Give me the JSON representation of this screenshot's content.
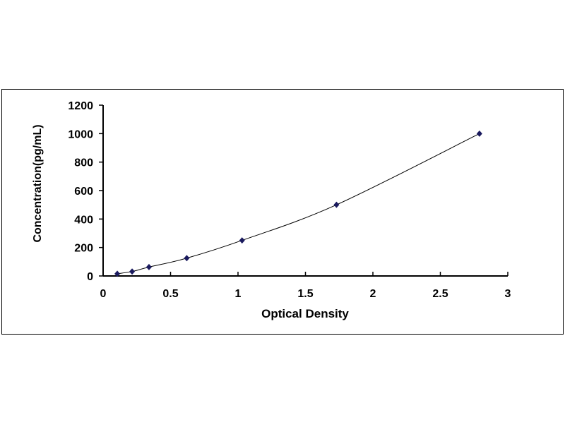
{
  "chart_data": {
    "type": "scatter",
    "title": "",
    "xlabel": "Optical Density",
    "ylabel": "Concentration(pg/mL)",
    "xlim": [
      0,
      3
    ],
    "ylim": [
      0,
      1200
    ],
    "x_ticks": [
      "0",
      "0.5",
      "1",
      "1.5",
      "2",
      "2.5",
      "3"
    ],
    "y_ticks": [
      "0",
      "200",
      "400",
      "600",
      "800",
      "1000",
      "1200"
    ],
    "grid": false,
    "legend": "none",
    "smoothed_line": true,
    "marker": "diamond",
    "colors": {
      "marker": "#1a1a5e",
      "line": "#000000"
    },
    "series": [
      {
        "x": [
          0.105,
          0.215,
          0.34,
          0.62,
          1.03,
          1.73,
          2.79
        ],
        "y": [
          15.6,
          31.25,
          62.5,
          125,
          250,
          500,
          1000
        ]
      }
    ]
  }
}
